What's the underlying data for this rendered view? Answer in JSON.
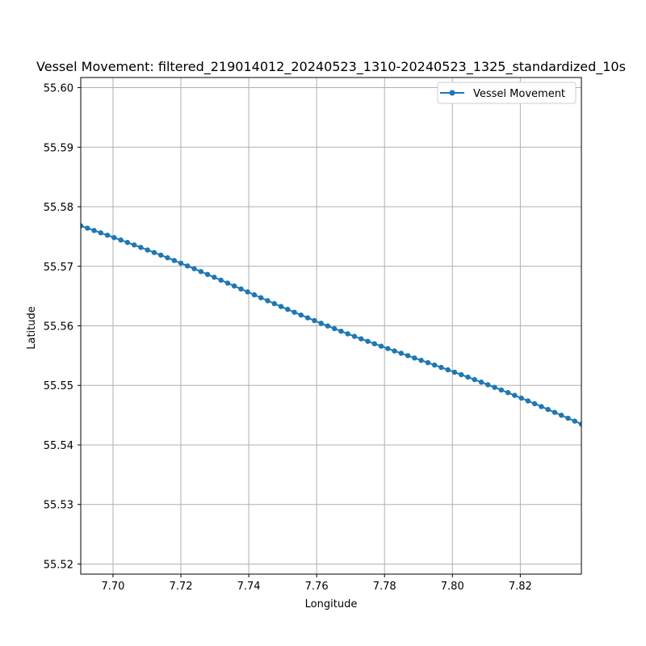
{
  "chart_data": {
    "type": "line",
    "title": "Vessel Movement: filtered_219014012_20240523_1310-20240523_1325_standardized_10s",
    "xlabel": "Longitude",
    "ylabel": "Latitude",
    "xlim": [
      7.6905,
      7.838
    ],
    "ylim": [
      55.5183,
      55.6017
    ],
    "xticks": [
      "7.70",
      "7.72",
      "7.74",
      "7.76",
      "7.78",
      "7.80",
      "7.82"
    ],
    "xtick_values": [
      7.7,
      7.72,
      7.74,
      7.76,
      7.78,
      7.8,
      7.82
    ],
    "yticks": [
      "55.52",
      "55.53",
      "55.54",
      "55.55",
      "55.56",
      "55.57",
      "55.58",
      "55.59",
      "55.60"
    ],
    "ytick_values": [
      55.52,
      55.53,
      55.54,
      55.55,
      55.56,
      55.57,
      55.58,
      55.59,
      55.6
    ],
    "grid": true,
    "legend_position": "top-right",
    "series": [
      {
        "name": "Vessel Movement",
        "color": "#1f77b4",
        "marker": "circle",
        "x_start": 7.6905,
        "x_end": 7.838,
        "y_start": 55.5768,
        "y_end": 55.5435,
        "point_count": 76
      }
    ]
  }
}
